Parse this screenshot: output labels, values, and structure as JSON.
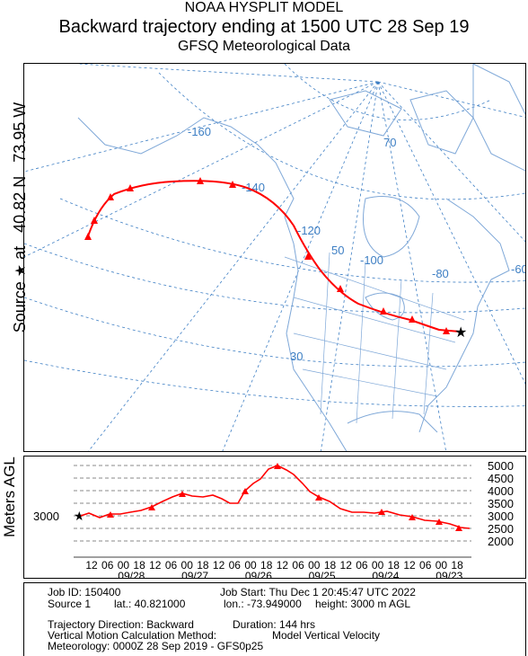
{
  "header": {
    "line1": "NOAA HYSPLIT MODEL",
    "line2": "Backward trajectory ending at 1500 UTC 28 Sep 19",
    "line3": "GFSQ Meteorological Data"
  },
  "side_label": {
    "prefix": "Source",
    "star": "★",
    "text": "at   40.82 N   73.95 W"
  },
  "map": {
    "longitude_labels": [
      "-160",
      "-140",
      "-120",
      "-100",
      "-80",
      "-60"
    ],
    "latitude_labels": [
      "70",
      "50",
      "30"
    ],
    "source_icon": "star-icon",
    "colors": {
      "trajectory": "#ff0000",
      "grid": "#3e7fc4",
      "coast": "#7fa8d8",
      "background": "#ffffff"
    }
  },
  "profile": {
    "ylabel": "Meters AGL",
    "source_height_label": "3000",
    "right_ticks": [
      "5000",
      "4500",
      "4000",
      "3500",
      "3000",
      "2500",
      "2000"
    ],
    "time_ticks": [
      "12",
      "06",
      "00",
      "18",
      "12",
      "06",
      "00",
      "18",
      "12",
      "06",
      "00",
      "18",
      "12",
      "06",
      "00",
      "18",
      "12",
      "06",
      "00",
      "18",
      "12",
      "06",
      "00",
      "18"
    ],
    "date_labels": [
      "09/28",
      "09/27",
      "09/26",
      "09/25",
      "09/24",
      "09/23"
    ]
  },
  "info": {
    "job_id": "Job ID: 150400",
    "job_start": "Job Start: Thu Dec  1 20:45:47 UTC 2022",
    "source": "Source 1",
    "lat": "lat.: 40.821000",
    "lon": "lon.: -73.949000",
    "height": "height: 3000 m AGL",
    "direction": "Trajectory Direction: Backward",
    "duration": "Duration: 144 hrs",
    "vertical": "Vertical Motion Calculation Method:",
    "vertical_value": "Model Vertical Velocity",
    "meteorology": "Meteorology: 0000Z 28 Sep 2019 - GFS0p25"
  }
}
